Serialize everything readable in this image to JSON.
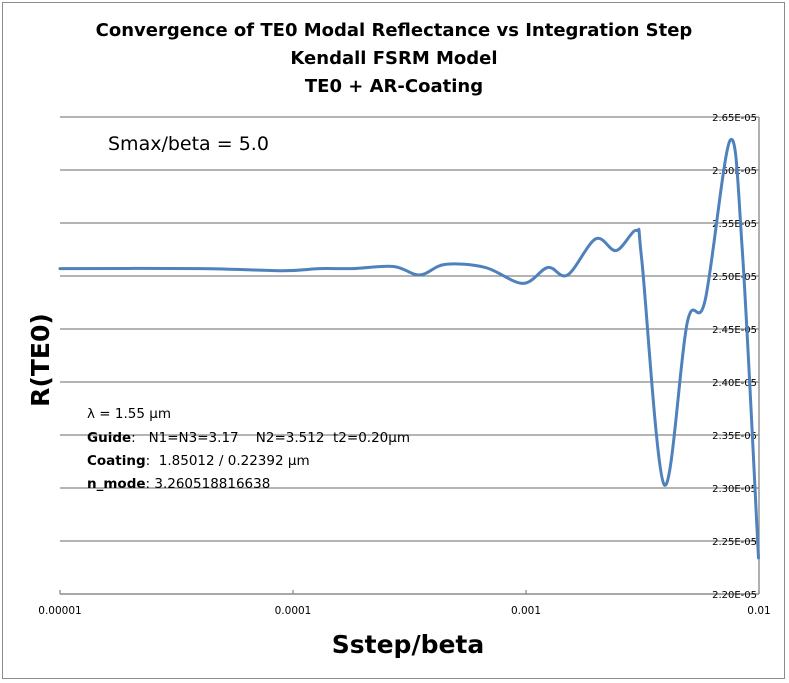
{
  "chart_data": {
    "type": "line",
    "title": [
      "Convergence of TE0 Modal Reflectance vs Integration Step",
      "Kendall FSRM Model",
      "TE0  + AR-Coating"
    ],
    "xlabel": "Sstep/beta",
    "ylabel": "R(TE0)",
    "xscale": "log",
    "xlim": [
      1e-05,
      0.01
    ],
    "ylim": [
      2.2e-05,
      2.65e-05
    ],
    "x_ticks": [
      1e-05,
      0.0001,
      0.001,
      0.01
    ],
    "x_tick_labels": [
      "0.00001",
      "0.0001",
      "0.001",
      "0.01"
    ],
    "y_ticks": [
      2.65e-05,
      2.6e-05,
      2.55e-05,
      2.5e-05,
      2.45e-05,
      2.4e-05,
      2.35e-05,
      2.3e-05,
      2.25e-05,
      2.2e-05
    ],
    "y_tick_labels": [
      "2.65E-05",
      "2.60E-05",
      "2.55E-05",
      "2.50E-05",
      "2.45E-05",
      "2.40E-05",
      "2.35E-05",
      "2.30E-05",
      "2.25E-05",
      "2.20E-05"
    ],
    "y_axis_side": "right",
    "grid": {
      "horizontal": true,
      "vertical": false
    },
    "legend": "none",
    "series": [
      {
        "name": "R(TE0)",
        "color": "#4f81bd",
        "smooth": true,
        "x": [
          1e-05,
          4e-05,
          9e-05,
          0.00013,
          0.00018,
          0.00027,
          0.00035,
          0.00045,
          0.00067,
          0.00097,
          0.00124,
          0.00151,
          0.00199,
          0.00244,
          0.00298,
          0.00314,
          0.00392,
          0.00492,
          0.00587,
          0.00752,
          0.00848,
          0.00995
        ],
        "values": [
          2.507e-05,
          2.507e-05,
          2.505e-05,
          2.507e-05,
          2.507e-05,
          2.509e-05,
          2.501e-05,
          2.511e-05,
          2.508e-05,
          2.493e-05,
          2.508e-05,
          2.501e-05,
          2.535e-05,
          2.524e-05,
          2.543e-05,
          2.515e-05,
          2.303e-05,
          2.456e-05,
          2.477e-05,
          2.628e-05,
          2.524e-05,
          2.234e-05
        ]
      }
    ],
    "annotations": [
      {
        "text": "Smax/beta = 5.0",
        "position": "top-left"
      },
      {
        "position": "lower-left",
        "lines": [
          {
            "label": "λ = 1.55 µm",
            "value": ""
          },
          {
            "label": "Guide",
            "value": ":   N1=N3=3.17    N2=3.512  t2=0.20µm"
          },
          {
            "label": "Coating",
            "value": ":  1.85012 / 0.22392 µm"
          },
          {
            "label": "n_mode",
            "value": ": 3.260518816638"
          }
        ]
      }
    ]
  },
  "colors": {
    "line": "#4f81bd",
    "grid": "#868686",
    "frame": "#8c8c8c",
    "text": "#000000"
  }
}
